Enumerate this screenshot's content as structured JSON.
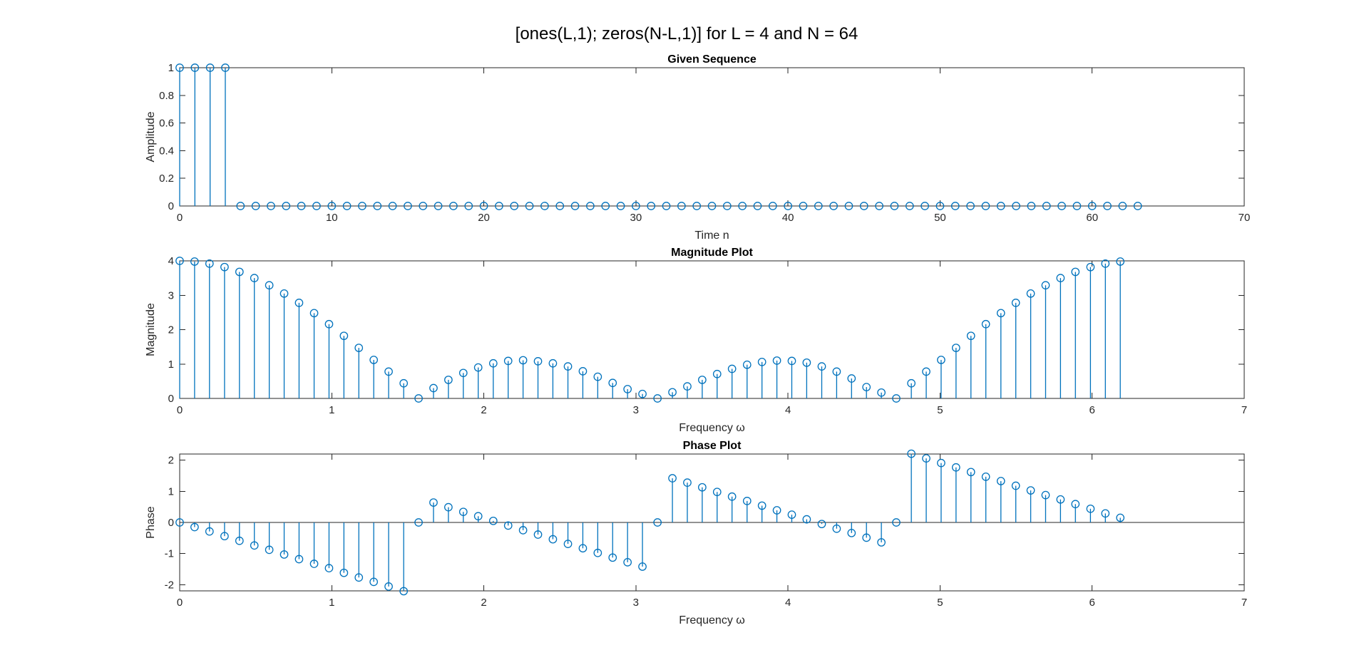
{
  "figure_title": "[ones(L,1); zeros(N-L,1)] for L = 4 and N = 64",
  "chart_data": [
    {
      "type": "stem",
      "title": "Given Sequence",
      "xlabel": "Time n",
      "ylabel": "Amplitude",
      "xlim": [
        0,
        70
      ],
      "ylim": [
        0,
        1
      ],
      "xticks": [
        0,
        10,
        20,
        30,
        40,
        50,
        60,
        70
      ],
      "yticks": [
        0,
        0.2,
        0.4,
        0.6,
        0.8,
        1
      ],
      "xtick_labels": [
        "0",
        "10",
        "20",
        "30",
        "40",
        "50",
        "60",
        "70"
      ],
      "ytick_labels": [
        "0",
        "0.2",
        "0.4",
        "0.6",
        "0.8",
        "1"
      ],
      "x": [
        0,
        1,
        2,
        3,
        4,
        5,
        6,
        7,
        8,
        9,
        10,
        11,
        12,
        13,
        14,
        15,
        16,
        17,
        18,
        19,
        20,
        21,
        22,
        23,
        24,
        25,
        26,
        27,
        28,
        29,
        30,
        31,
        32,
        33,
        34,
        35,
        36,
        37,
        38,
        39,
        40,
        41,
        42,
        43,
        44,
        45,
        46,
        47,
        48,
        49,
        50,
        51,
        52,
        53,
        54,
        55,
        56,
        57,
        58,
        59,
        60,
        61,
        62,
        63
      ],
      "y": [
        1,
        1,
        1,
        1,
        0,
        0,
        0,
        0,
        0,
        0,
        0,
        0,
        0,
        0,
        0,
        0,
        0,
        0,
        0,
        0,
        0,
        0,
        0,
        0,
        0,
        0,
        0,
        0,
        0,
        0,
        0,
        0,
        0,
        0,
        0,
        0,
        0,
        0,
        0,
        0,
        0,
        0,
        0,
        0,
        0,
        0,
        0,
        0,
        0,
        0,
        0,
        0,
        0,
        0,
        0,
        0,
        0,
        0,
        0,
        0,
        0,
        0,
        0,
        0
      ]
    },
    {
      "type": "stem",
      "title": "Magnitude Plot",
      "xlabel": "Frequency ω",
      "ylabel": "Magnitude",
      "xlim": [
        0,
        7
      ],
      "ylim": [
        0,
        4
      ],
      "xticks": [
        0,
        1,
        2,
        3,
        4,
        5,
        6,
        7
      ],
      "yticks": [
        0,
        1,
        2,
        3,
        4
      ],
      "xtick_labels": [
        "0",
        "1",
        "2",
        "3",
        "4",
        "5",
        "6",
        "7"
      ],
      "ytick_labels": [
        "0",
        "1",
        "2",
        "3",
        "4"
      ],
      "x": [
        0,
        0.098,
        0.196,
        0.295,
        0.393,
        0.491,
        0.589,
        0.687,
        0.785,
        0.884,
        0.982,
        1.08,
        1.178,
        1.276,
        1.374,
        1.473,
        1.571,
        1.669,
        1.767,
        1.865,
        1.963,
        2.062,
        2.16,
        2.258,
        2.356,
        2.454,
        2.553,
        2.651,
        2.749,
        2.847,
        2.945,
        3.043,
        3.142,
        3.24,
        3.338,
        3.436,
        3.534,
        3.632,
        3.731,
        3.829,
        3.927,
        4.025,
        4.123,
        4.222,
        4.32,
        4.418,
        4.516,
        4.614,
        4.712,
        4.811,
        4.909,
        5.007,
        5.105,
        5.203,
        5.301,
        5.4,
        5.498,
        5.596,
        5.694,
        5.792,
        5.89,
        5.989,
        6.087,
        6.185
      ],
      "y": [
        4,
        3.98,
        3.92,
        3.82,
        3.68,
        3.5,
        3.29,
        3.05,
        2.78,
        2.48,
        2.16,
        1.82,
        1.47,
        1.12,
        0.78,
        0.44,
        0,
        0.3,
        0.54,
        0.74,
        0.9,
        1.02,
        1.09,
        1.11,
        1.08,
        1.02,
        0.93,
        0.79,
        0.63,
        0.45,
        0.27,
        0.13,
        0,
        0.18,
        0.35,
        0.54,
        0.71,
        0.86,
        0.98,
        1.06,
        1.1,
        1.09,
        1.04,
        0.93,
        0.78,
        0.58,
        0.33,
        0.17,
        0,
        0.44,
        0.78,
        1.12,
        1.47,
        1.82,
        2.16,
        2.48,
        2.78,
        3.05,
        3.29,
        3.5,
        3.68,
        3.82,
        3.92,
        3.98
      ]
    },
    {
      "type": "stem",
      "title": "Phase Plot",
      "xlabel": "Frequency ω",
      "ylabel": "Phase",
      "xlim": [
        0,
        7
      ],
      "ylim": [
        -2.2,
        2.2
      ],
      "xticks": [
        0,
        1,
        2,
        3,
        4,
        5,
        6,
        7
      ],
      "yticks": [
        -2,
        -1,
        0,
        1,
        2
      ],
      "xtick_labels": [
        "0",
        "1",
        "2",
        "3",
        "4",
        "5",
        "6",
        "7"
      ],
      "ytick_labels": [
        "-2",
        "-1",
        "0",
        "1",
        "2"
      ],
      "x": [
        0,
        0.098,
        0.196,
        0.295,
        0.393,
        0.491,
        0.589,
        0.687,
        0.785,
        0.884,
        0.982,
        1.08,
        1.178,
        1.276,
        1.374,
        1.473,
        1.571,
        1.669,
        1.767,
        1.865,
        1.963,
        2.062,
        2.16,
        2.258,
        2.356,
        2.454,
        2.553,
        2.651,
        2.749,
        2.847,
        2.945,
        3.043,
        3.142,
        3.24,
        3.338,
        3.436,
        3.534,
        3.632,
        3.731,
        3.829,
        3.927,
        4.025,
        4.123,
        4.222,
        4.32,
        4.418,
        4.516,
        4.614,
        4.712,
        4.811,
        4.909,
        5.007,
        5.105,
        5.203,
        5.301,
        5.4,
        5.498,
        5.596,
        5.694,
        5.792,
        5.89,
        5.989,
        6.087,
        6.185
      ],
      "y": [
        0,
        -0.15,
        -0.29,
        -0.44,
        -0.59,
        -0.74,
        -0.88,
        -1.03,
        -1.18,
        -1.33,
        -1.47,
        -1.62,
        -1.77,
        -1.91,
        -2.06,
        -2.21,
        0,
        0.64,
        0.49,
        0.34,
        0.2,
        0.05,
        -0.1,
        -0.25,
        -0.39,
        -0.54,
        -0.69,
        -0.83,
        -0.98,
        -1.13,
        -1.28,
        -1.42,
        0,
        1.42,
        1.28,
        1.13,
        0.98,
        0.83,
        0.69,
        0.54,
        0.39,
        0.25,
        0.1,
        -0.05,
        -0.2,
        -0.34,
        -0.49,
        -0.64,
        0,
        2.21,
        2.06,
        1.91,
        1.77,
        1.62,
        1.47,
        1.33,
        1.18,
        1.03,
        0.88,
        0.74,
        0.59,
        0.44,
        0.29,
        0.15
      ]
    }
  ]
}
